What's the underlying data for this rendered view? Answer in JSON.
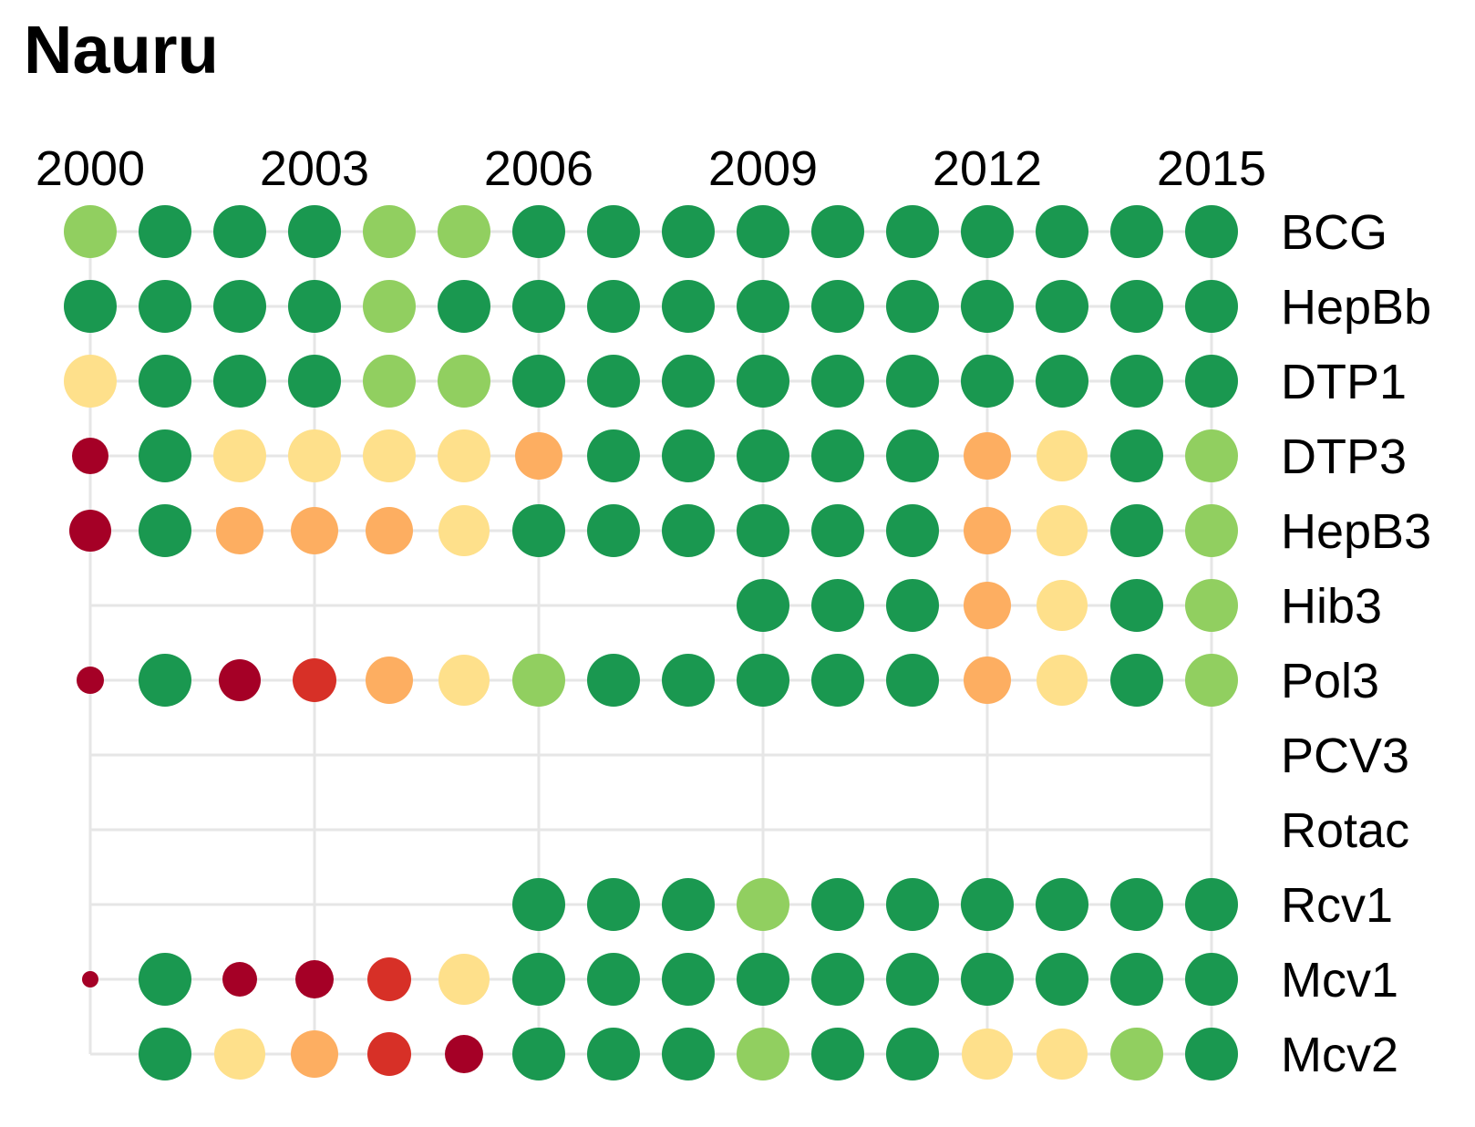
{
  "chart_data": {
    "type": "scatter",
    "title": "Nauru",
    "years": [
      2000,
      2001,
      2002,
      2003,
      2004,
      2005,
      2006,
      2007,
      2008,
      2009,
      2010,
      2011,
      2012,
      2013,
      2014,
      2015
    ],
    "x_tick_labels": [
      "2000",
      "2003",
      "2006",
      "2009",
      "2012",
      "2015"
    ],
    "x_tick_years": [
      2000,
      2003,
      2006,
      2009,
      2012,
      2015
    ],
    "rows": [
      {
        "name": "BCG",
        "start": 2000,
        "levels": [
          4,
          5,
          5,
          5,
          4,
          4,
          5,
          5,
          5,
          5,
          5,
          5,
          5,
          5,
          5,
          5
        ]
      },
      {
        "name": "HepBb",
        "start": 2000,
        "levels": [
          5,
          5,
          5,
          5,
          4,
          5,
          5,
          5,
          5,
          5,
          5,
          5,
          5,
          5,
          5,
          5
        ]
      },
      {
        "name": "DTP1",
        "start": 2000,
        "levels": [
          3,
          5,
          5,
          5,
          4,
          4,
          5,
          5,
          5,
          5,
          5,
          5,
          5,
          5,
          5,
          5
        ]
      },
      {
        "name": "DTP3",
        "start": 2000,
        "levels": [
          0,
          5,
          3,
          3,
          3,
          3,
          2,
          5,
          5,
          5,
          5,
          5,
          2,
          3,
          5,
          4
        ]
      },
      {
        "name": "HepB3",
        "start": 2000,
        "levels": [
          0,
          5,
          2,
          2,
          2,
          3,
          5,
          5,
          5,
          5,
          5,
          5,
          2,
          3,
          5,
          4
        ]
      },
      {
        "name": "Hib3",
        "start": 2000,
        "levels": [
          null,
          null,
          null,
          null,
          null,
          null,
          null,
          null,
          null,
          5,
          5,
          5,
          2,
          3,
          5,
          4
        ]
      },
      {
        "name": "Pol3",
        "start": 2000,
        "levels": [
          0,
          5,
          0,
          1,
          2,
          3,
          4,
          5,
          5,
          5,
          5,
          5,
          2,
          3,
          5,
          4
        ]
      },
      {
        "name": "PCV3",
        "start": 2000,
        "levels": [
          null,
          null,
          null,
          null,
          null,
          null,
          null,
          null,
          null,
          null,
          null,
          null,
          null,
          null,
          null,
          null
        ]
      },
      {
        "name": "Rotac",
        "start": 2000,
        "levels": [
          null,
          null,
          null,
          null,
          null,
          null,
          null,
          null,
          null,
          null,
          null,
          null,
          null,
          null,
          null,
          null
        ]
      },
      {
        "name": "Rcv1",
        "start": 2000,
        "levels": [
          null,
          null,
          null,
          null,
          null,
          null,
          5,
          5,
          5,
          4,
          5,
          5,
          5,
          5,
          5,
          5
        ]
      },
      {
        "name": "Mcv1",
        "start": 2000,
        "levels": [
          0,
          5,
          0,
          0,
          1,
          3,
          5,
          5,
          5,
          5,
          5,
          5,
          5,
          5,
          5,
          5
        ]
      },
      {
        "name": "Mcv2",
        "start": 2000,
        "levels": [
          null,
          5,
          3,
          2,
          1,
          0,
          5,
          5,
          5,
          4,
          5,
          5,
          3,
          3,
          4,
          5
        ]
      }
    ],
    "dot_sizes": [
      [
        29,
        29,
        29,
        29,
        29,
        29,
        29,
        29,
        29,
        29,
        29,
        29,
        29,
        29,
        29,
        29
      ],
      [
        29,
        29,
        29,
        29,
        29,
        29,
        29,
        29,
        29,
        29,
        29,
        29,
        29,
        29,
        29,
        29
      ],
      [
        29,
        29,
        29,
        29,
        29,
        29,
        29,
        29,
        29,
        29,
        29,
        29,
        29,
        29,
        29,
        29
      ],
      [
        20,
        29,
        29,
        29,
        29,
        29,
        26,
        29,
        29,
        29,
        29,
        29,
        26,
        28,
        29,
        29
      ],
      [
        23,
        29,
        26,
        26,
        26,
        28,
        29,
        29,
        29,
        29,
        29,
        29,
        26,
        28,
        29,
        29
      ],
      [
        0,
        0,
        0,
        0,
        0,
        0,
        0,
        0,
        0,
        29,
        29,
        29,
        26,
        28,
        29,
        29
      ],
      [
        15,
        29,
        23,
        24,
        26,
        28,
        29,
        29,
        29,
        29,
        29,
        29,
        26,
        28,
        29,
        29
      ],
      [
        0,
        0,
        0,
        0,
        0,
        0,
        0,
        0,
        0,
        0,
        0,
        0,
        0,
        0,
        0,
        0
      ],
      [
        0,
        0,
        0,
        0,
        0,
        0,
        0,
        0,
        0,
        0,
        0,
        0,
        0,
        0,
        0,
        0
      ],
      [
        0,
        0,
        0,
        0,
        0,
        0,
        29,
        29,
        29,
        29,
        29,
        29,
        29,
        29,
        29,
        29
      ],
      [
        9,
        29,
        19,
        21,
        24,
        28,
        29,
        29,
        29,
        29,
        29,
        29,
        29,
        29,
        29,
        29
      ],
      [
        0,
        29,
        28,
        26,
        24,
        21,
        29,
        29,
        29,
        29,
        29,
        29,
        28,
        28,
        29,
        29
      ]
    ],
    "level_colors": [
      "#a50026",
      "#d73027",
      "#fdae61",
      "#fee08b",
      "#91cf60",
      "#1a9850"
    ],
    "grid_color": "#e6e6e6",
    "grid": true
  }
}
